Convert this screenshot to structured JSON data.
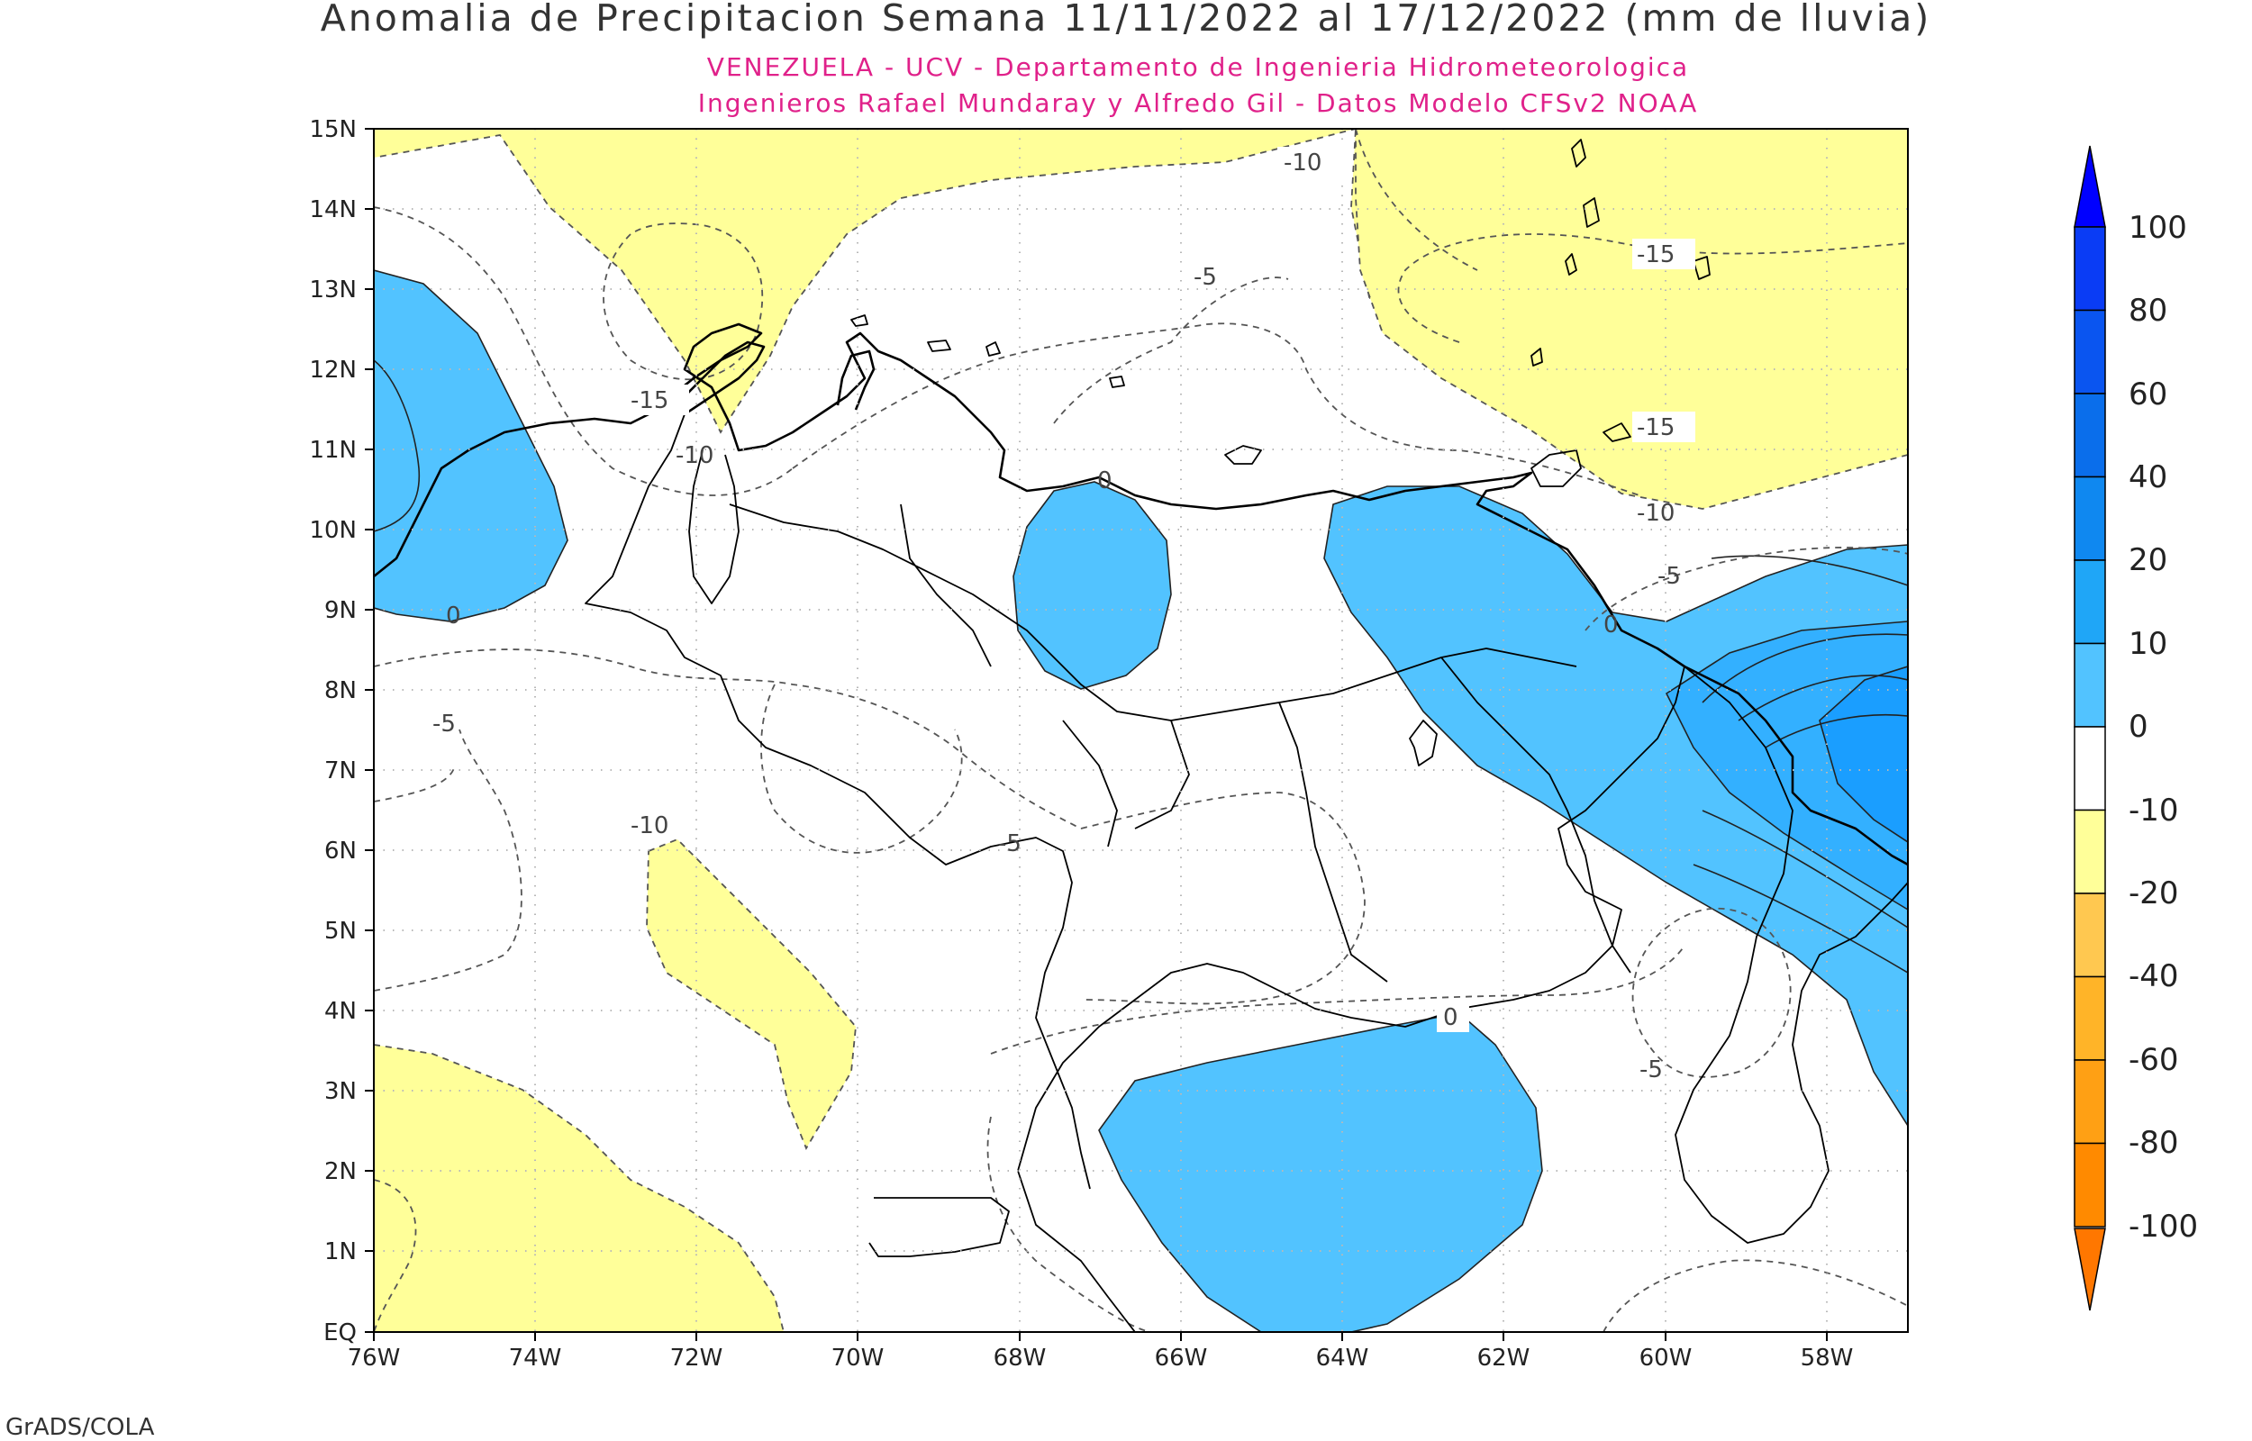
{
  "title": "Anomalia de Precipitacion Semana 11/11/2022 al 17/12/2022 (mm de lluvia)",
  "subtitle_line1": "VENEZUELA - UCV - Departamento de Ingenieria Hidrometeorologica",
  "subtitle_line2": "Ingenieros Rafael Mundaray y Alfredo Gil - Datos Modelo CFSv2 NOAA",
  "credit": "GrADS/COLA",
  "colors": {
    "yellow_neg": "#ffff99",
    "blue_0_10": "#52c3ff",
    "blue_10_20": "#33b0ff",
    "blue_20_40": "#1a9eff",
    "text_magenta": "#e0218a"
  },
  "map": {
    "lat_labels": [
      "15N",
      "14N",
      "13N",
      "12N",
      "11N",
      "10N",
      "9N",
      "8N",
      "7N",
      "6N",
      "5N",
      "4N",
      "3N",
      "2N",
      "1N",
      "EQ"
    ],
    "lon_labels": [
      "76W",
      "74W",
      "72W",
      "70W",
      "68W",
      "66W",
      "64W",
      "62W",
      "60W",
      "58W"
    ],
    "contour_labels": [
      {
        "id": "c1",
        "text": "-10"
      },
      {
        "id": "c2",
        "text": "-15"
      },
      {
        "id": "c3",
        "text": "-5"
      },
      {
        "id": "c4",
        "text": "-15"
      },
      {
        "id": "c5",
        "text": "-10"
      },
      {
        "id": "c6",
        "text": "-15"
      },
      {
        "id": "c7",
        "text": "-10"
      },
      {
        "id": "c8",
        "text": "0"
      },
      {
        "id": "c9",
        "text": "-5"
      },
      {
        "id": "c10",
        "text": "0"
      },
      {
        "id": "c11",
        "text": "0"
      },
      {
        "id": "c12",
        "text": "-5"
      },
      {
        "id": "c13",
        "text": "-10"
      },
      {
        "id": "c14",
        "text": "-5"
      },
      {
        "id": "c15",
        "text": "0"
      },
      {
        "id": "c16",
        "text": "-5"
      }
    ]
  },
  "colorbar": {
    "labels": [
      "100",
      "80",
      "60",
      "40",
      "20",
      "10",
      "0",
      "-10",
      "-20",
      "-40",
      "-60",
      "-80",
      "-100"
    ],
    "segments": [
      {
        "color": "#0000ff"
      },
      {
        "color": "#0a3cf5"
      },
      {
        "color": "#0a55f0"
      },
      {
        "color": "#0a6eeb"
      },
      {
        "color": "#0f88f0"
      },
      {
        "color": "#1fa6f7"
      },
      {
        "color": "#52c3ff"
      },
      {
        "color": "#ffffff"
      },
      {
        "color": "#ffff99"
      },
      {
        "color": "#ffc850"
      },
      {
        "color": "#ffb428"
      },
      {
        "color": "#ffa014"
      },
      {
        "color": "#ff8a00"
      },
      {
        "color": "#ff7700"
      }
    ]
  }
}
